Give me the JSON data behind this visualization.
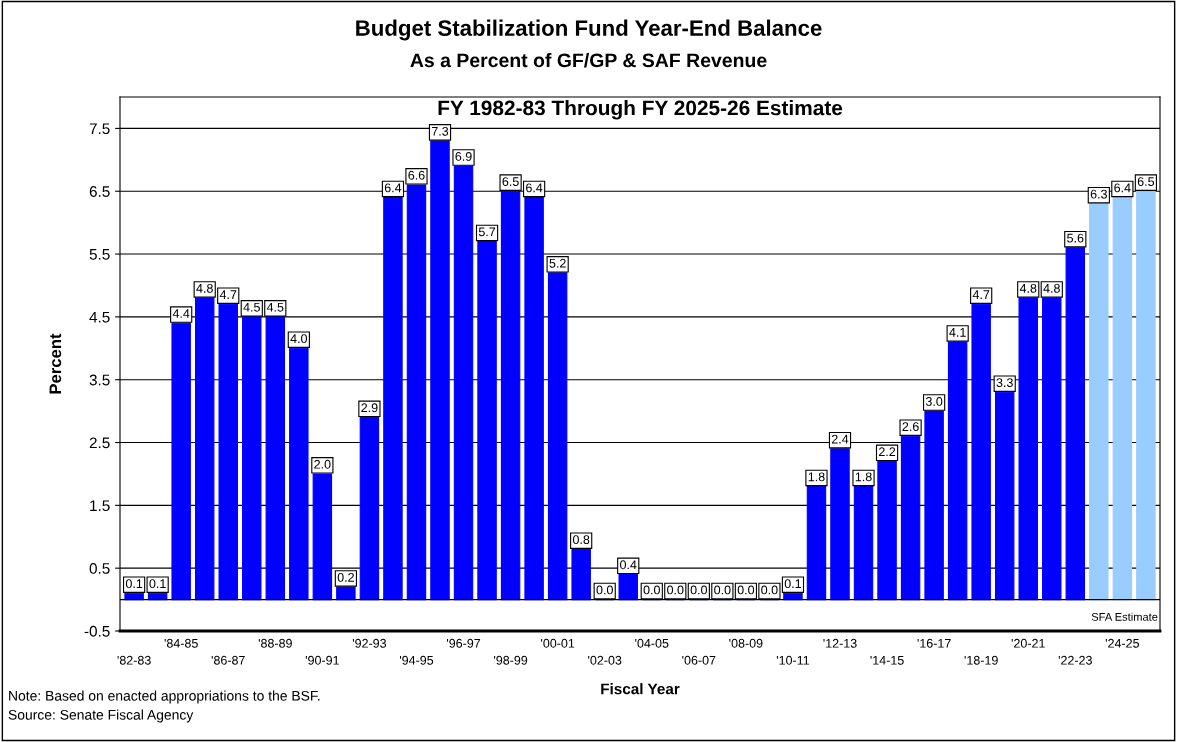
{
  "chart_data": {
    "type": "bar",
    "title": "Budget Stabilization Fund Year-End Balance",
    "subtitle": "As a Percent of GF/GP & SAF Revenue",
    "xlabel": "Fiscal Year",
    "ylabel": "Percent",
    "categories": [
      "'82-83",
      null,
      "'84-85",
      null,
      "'86-87",
      null,
      "'88-89",
      null,
      "'90-91",
      null,
      "'92-93",
      null,
      "'94-95",
      null,
      "'96-97",
      null,
      "'98-99",
      null,
      "'00-01",
      null,
      "'02-03",
      null,
      "'04-05",
      null,
      "'06-07",
      null,
      "'08-09",
      null,
      "'10-11",
      null,
      "'12-13",
      null,
      "'14-15",
      null,
      "'16-17",
      null,
      "'18-19",
      null,
      "'20-21",
      null,
      "'22-23",
      null,
      "'24-25",
      null
    ],
    "values": [
      0.1,
      0.1,
      4.4,
      4.8,
      4.7,
      4.5,
      4.5,
      4.0,
      2.0,
      0.2,
      2.9,
      6.4,
      6.6,
      7.3,
      6.9,
      5.7,
      6.5,
      6.4,
      5.2,
      0.8,
      0.0,
      0.4,
      0.0,
      0.0,
      0.0,
      0.0,
      0.0,
      0.0,
      0.1,
      1.8,
      2.4,
      1.8,
      2.2,
      2.6,
      3.0,
      4.1,
      4.7,
      3.3,
      4.8,
      4.8,
      5.6,
      6.3,
      6.4,
      6.5
    ],
    "colors": [
      "#0000ff",
      "#0000ff",
      "#0000ff",
      "#0000ff",
      "#0000ff",
      "#0000ff",
      "#0000ff",
      "#0000ff",
      "#0000ff",
      "#0000ff",
      "#0000ff",
      "#0000ff",
      "#0000ff",
      "#0000ff",
      "#0000ff",
      "#0000ff",
      "#0000ff",
      "#0000ff",
      "#0000ff",
      "#0000ff",
      "#0000ff",
      "#0000ff",
      "#0000ff",
      "#0000ff",
      "#0000ff",
      "#0000ff",
      "#0000ff",
      "#0000ff",
      "#0000ff",
      "#0000ff",
      "#0000ff",
      "#0000ff",
      "#0000ff",
      "#0000ff",
      "#0000ff",
      "#0000ff",
      "#0000ff",
      "#0000ff",
      "#0000ff",
      "#0000ff",
      "#0000ff",
      "#99ccff",
      "#99ccff",
      "#99ccff"
    ],
    "value_labels": [
      "0.1",
      "0.1",
      "4.4",
      "4.8",
      "4.7",
      "4.5",
      "4.5",
      "4.0",
      "2.0",
      "0.2",
      "2.9",
      "6.4",
      "6.6",
      "7.3",
      "6.9",
      "5.7",
      "6.5",
      "6.4",
      "5.2",
      "0.8",
      "0.0",
      "0.4",
      "0.0",
      "0.0",
      "0.0",
      "0.0",
      "0.0",
      "0.0",
      "0.1",
      "1.8",
      "2.4",
      "1.8",
      "2.2",
      "2.6",
      "3.0",
      "4.1",
      "4.7",
      "3.3",
      "4.8",
      "4.8",
      "5.6",
      "6.3",
      "6.4",
      "6.5"
    ],
    "ylim": [
      -0.5,
      8.0
    ],
    "yticks": [
      -0.5,
      0.5,
      1.5,
      2.5,
      3.5,
      4.5,
      5.5,
      6.5,
      7.5
    ],
    "grid": "y",
    "legend": false,
    "annotations": [
      "FY 1982-83 Through FY 2025-26 Estimate",
      "SFA Estimate",
      "Note: Based on enacted appropriations to the BSF.",
      "Source: Senate Fiscal Agency"
    ]
  }
}
